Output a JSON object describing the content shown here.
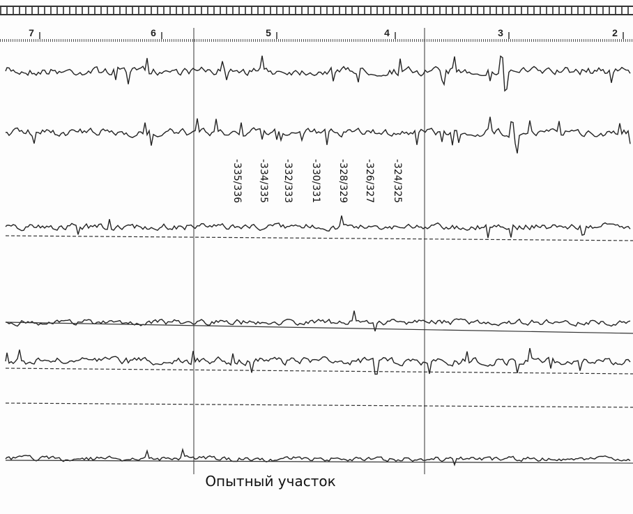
{
  "header": {
    "markers": [
      "7",
      "6",
      "5",
      "4",
      "3",
      "2"
    ]
  },
  "labels": [
    "-335/336",
    "-334/335",
    "-332/333",
    "-330/331",
    "-328/329",
    "-326/327",
    "-324/325"
  ],
  "caption": "Опытный участок"
}
